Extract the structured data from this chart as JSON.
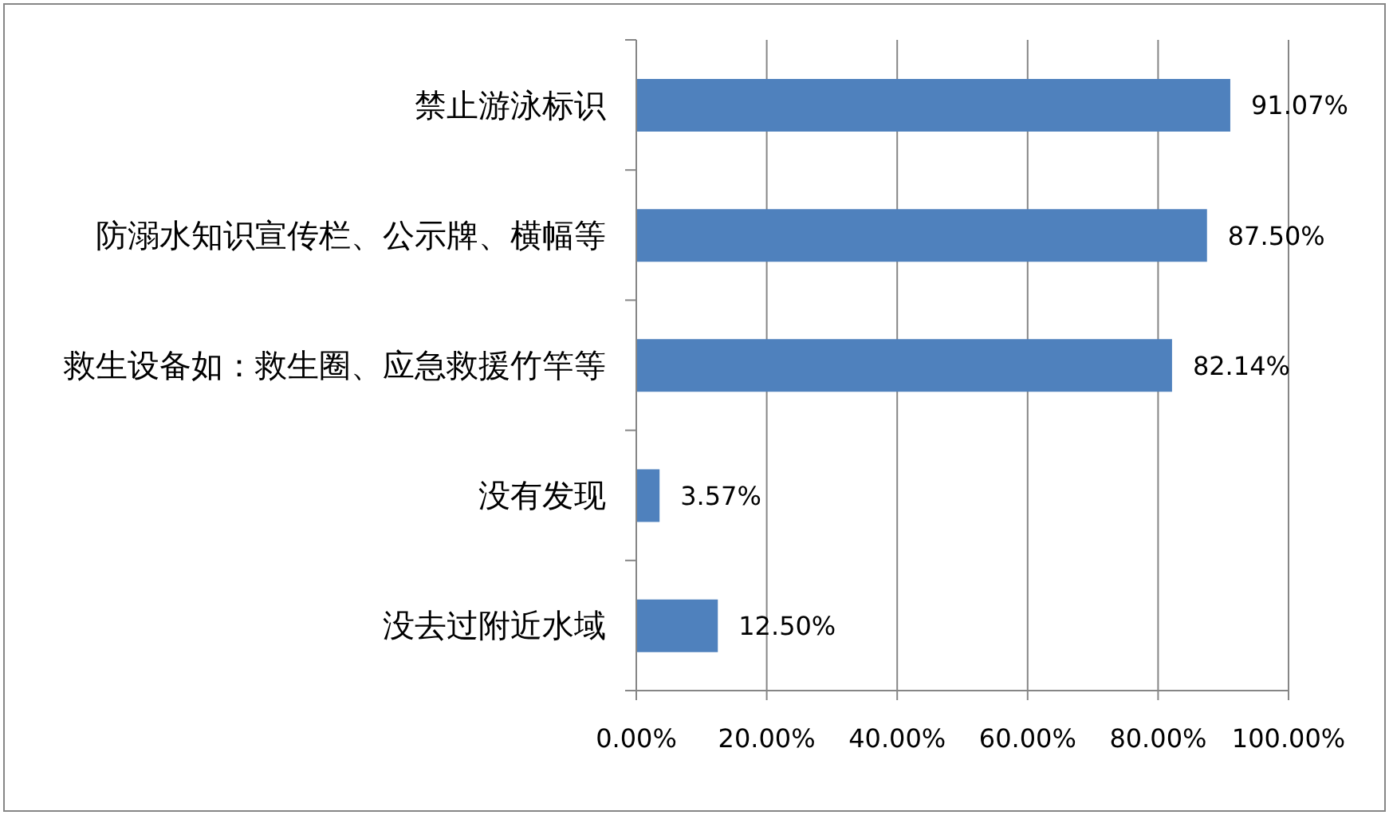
{
  "chart_data": {
    "type": "bar",
    "orientation": "horizontal",
    "categories": [
      "禁止游泳标识",
      "防溺水知识宣传栏、公示牌、横幅等",
      "救生设备如：救生圈、应急救援竹竿等",
      "没有发现",
      "没去过附近水域"
    ],
    "values": [
      91.07,
      87.5,
      82.14,
      3.57,
      12.5
    ],
    "color": "#4f81bd",
    "value_labels": [
      "91.07%",
      "87.50%",
      "82.14%",
      "3.57%",
      "12.50%"
    ],
    "xlim": [
      0,
      100
    ],
    "xticks": [
      {
        "value": 0,
        "label": "0.00%"
      },
      {
        "value": 20,
        "label": "20.00%"
      },
      {
        "value": 40,
        "label": "40.00%"
      },
      {
        "value": 60,
        "label": "60.00%"
      },
      {
        "value": 80,
        "label": "80.00%"
      },
      {
        "value": 100,
        "label": "100.00%"
      }
    ],
    "grid": "x"
  }
}
